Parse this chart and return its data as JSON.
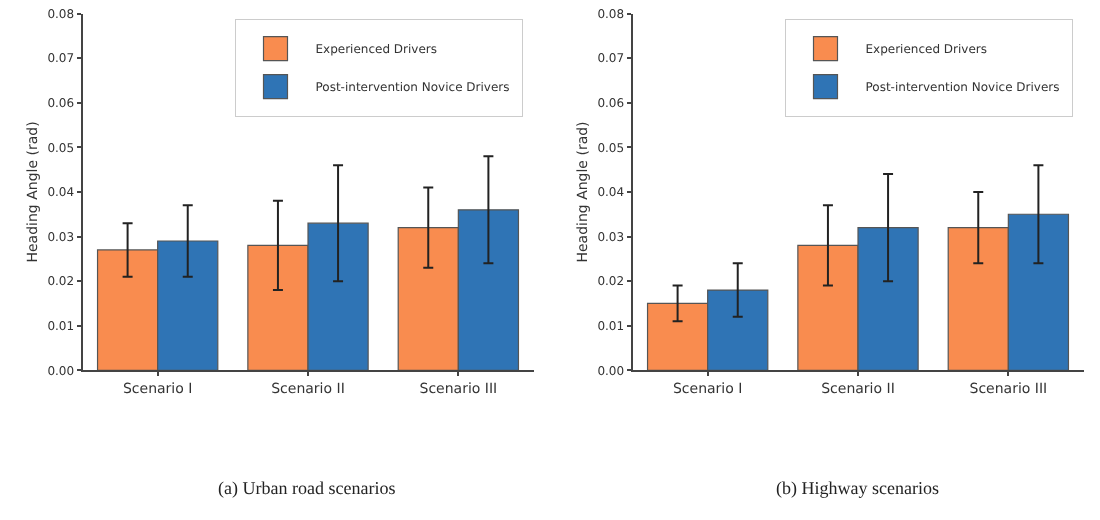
{
  "chart_data": [
    {
      "type": "bar",
      "title": "(a) Urban road scenarios",
      "ylabel": "Heading Angle (rad)",
      "categories": [
        "Scenario I",
        "Scenario II",
        "Scenario III"
      ],
      "series": [
        {
          "name": "Experienced Drivers",
          "color": "#f98c4f",
          "values": [
            0.027,
            0.028,
            0.032
          ],
          "errors": [
            0.006,
            0.01,
            0.009
          ]
        },
        {
          "name": "Post-intervention Novice Drivers",
          "color": "#2f74b5",
          "values": [
            0.029,
            0.033,
            0.036
          ],
          "errors": [
            0.008,
            0.013,
            0.012
          ]
        }
      ],
      "ylim": [
        0,
        0.08
      ],
      "yticks": [
        {
          "value": 0,
          "label": "0.00"
        },
        {
          "value": 0.01,
          "label": "0.01"
        },
        {
          "value": 0.02,
          "label": "0.02"
        },
        {
          "value": 0.03,
          "label": "0.03"
        },
        {
          "value": 0.04,
          "label": "0.04"
        },
        {
          "value": 0.05,
          "label": "0.05"
        },
        {
          "value": 0.06,
          "label": "0.06"
        },
        {
          "value": 0.07,
          "label": "0.07"
        },
        {
          "value": 0.08,
          "label": "0.08"
        }
      ],
      "legend": "top right",
      "grid": false
    },
    {
      "type": "bar",
      "title": "(b) Highway scenarios",
      "ylabel": "Heading Angle (rad)",
      "categories": [
        "Scenario I",
        "Scenario II",
        "Scenario III"
      ],
      "series": [
        {
          "name": "Experienced Drivers",
          "color": "#f98c4f",
          "values": [
            0.015,
            0.028,
            0.032
          ],
          "errors": [
            0.004,
            0.009,
            0.008
          ]
        },
        {
          "name": "Post-intervention Novice Drivers",
          "color": "#2f74b5",
          "values": [
            0.018,
            0.032,
            0.035
          ],
          "errors": [
            0.006,
            0.012,
            0.011
          ]
        }
      ],
      "ylim": [
        0,
        0.08
      ],
      "yticks": [
        {
          "value": 0,
          "label": "0.00"
        },
        {
          "value": 0.01,
          "label": "0.01"
        },
        {
          "value": 0.02,
          "label": "0.02"
        },
        {
          "value": 0.03,
          "label": "0.03"
        },
        {
          "value": 0.04,
          "label": "0.04"
        },
        {
          "value": 0.05,
          "label": "0.05"
        },
        {
          "value": 0.06,
          "label": "0.06"
        },
        {
          "value": 0.07,
          "label": "0.07"
        },
        {
          "value": 0.08,
          "label": "0.08"
        }
      ],
      "legend": "top right",
      "grid": false
    }
  ]
}
